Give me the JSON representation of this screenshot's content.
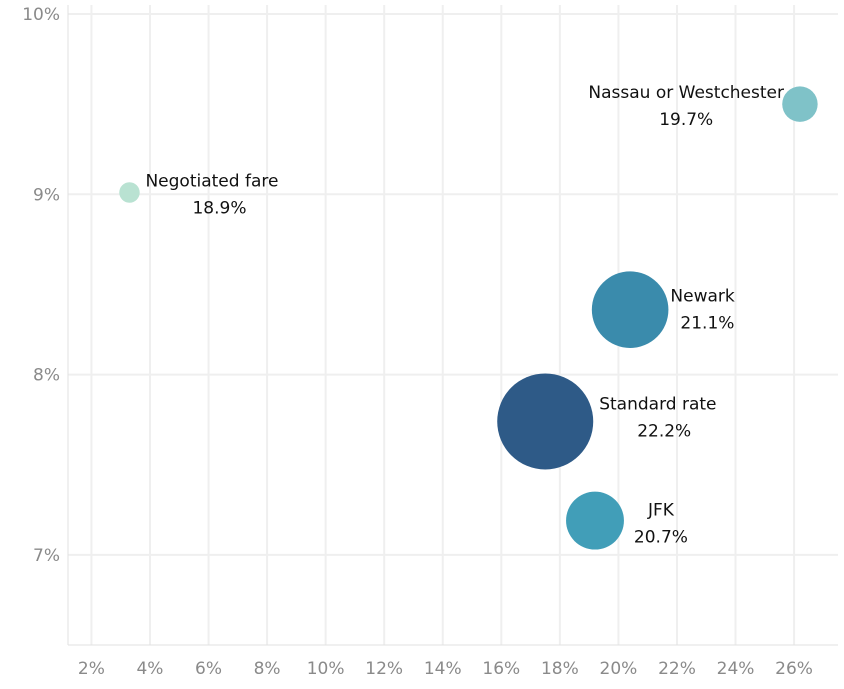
{
  "chart_data": {
    "type": "scatter",
    "title": "",
    "xlabel": "",
    "ylabel": "",
    "xlim": [
      1.2,
      27.5
    ],
    "ylim": [
      6.5,
      10.05
    ],
    "x_ticks": [
      2,
      4,
      6,
      8,
      10,
      12,
      14,
      16,
      18,
      20,
      22,
      24,
      26
    ],
    "x_tick_labels": [
      "2%",
      "4%",
      "6%",
      "8%",
      "10%",
      "12%",
      "14%",
      "16%",
      "18%",
      "20%",
      "22%",
      "24%",
      "26%"
    ],
    "y_ticks": [
      7,
      8,
      9,
      10
    ],
    "y_tick_labels": [
      "7%",
      "8%",
      "9%",
      "10%"
    ],
    "grid": true,
    "points": [
      {
        "label": "Negotiated fare",
        "value_label": "18.9%",
        "x": 3.3,
        "y": 9.01,
        "size": 1,
        "color": "#b9e2d2"
      },
      {
        "label": "Nassau or Westchester",
        "value_label": "19.7%",
        "x": 26.2,
        "y": 9.5,
        "size": 3,
        "color": "#7fc2c8"
      },
      {
        "label": "Newark",
        "value_label": "21.1%",
        "x": 20.4,
        "y": 8.36,
        "size": 14,
        "color": "#3a8bac"
      },
      {
        "label": "Standard rate",
        "value_label": "22.2%",
        "x": 17.5,
        "y": 7.74,
        "size": 22,
        "color": "#2e5a87"
      },
      {
        "label": "JFK",
        "value_label": "20.7%",
        "x": 19.2,
        "y": 7.19,
        "size": 8,
        "color": "#419eb8"
      }
    ]
  }
}
